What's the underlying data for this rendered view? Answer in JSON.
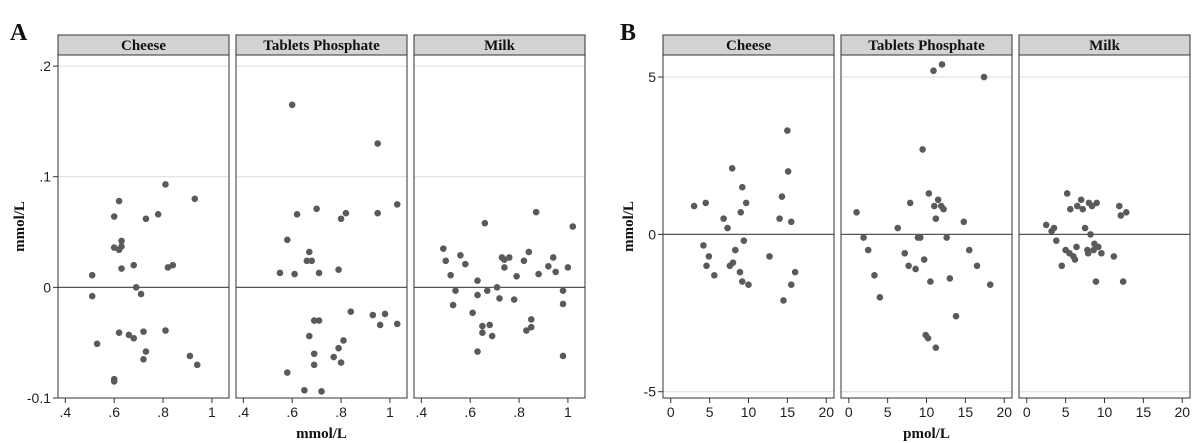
{
  "chart_data": [
    {
      "type": "scatter",
      "panel_label": "A",
      "xlabel": "mmol/L",
      "ylabel": "mmol/L",
      "xlim": [
        0.37,
        1.07
      ],
      "ylim": [
        -0.1,
        0.21
      ],
      "x_ticks": [
        {
          "v": 0.4,
          "label": ".4"
        },
        {
          "v": 0.6,
          "label": ".6"
        },
        {
          "v": 0.8,
          "label": ".8"
        },
        {
          "v": 1.0,
          "label": "1"
        }
      ],
      "y_ticks": [
        {
          "v": 0.2,
          "label": ".2"
        },
        {
          "v": 0.1,
          "label": ".1"
        },
        {
          "v": 0,
          "label": "0"
        },
        {
          "v": -0.1,
          "label": "-0.1"
        }
      ],
      "gridlines_y": [
        0.2,
        0.1,
        -0.1
      ],
      "reference_line_y": 0,
      "facets": [
        {
          "name": "Cheese",
          "points": [
            [
              0.51,
              0.011
            ],
            [
              0.51,
              -0.008
            ],
            [
              0.53,
              -0.051
            ],
            [
              0.6,
              0.064
            ],
            [
              0.6,
              0.036
            ],
            [
              0.6,
              -0.083
            ],
            [
              0.6,
              -0.085
            ],
            [
              0.62,
              0.078
            ],
            [
              0.62,
              0.034
            ],
            [
              0.62,
              -0.041
            ],
            [
              0.63,
              0.042
            ],
            [
              0.63,
              0.037
            ],
            [
              0.63,
              0.017
            ],
            [
              0.66,
              -0.043
            ],
            [
              0.68,
              0.02
            ],
            [
              0.68,
              -0.046
            ],
            [
              0.69,
              0.0
            ],
            [
              0.71,
              -0.006
            ],
            [
              0.72,
              -0.04
            ],
            [
              0.72,
              -0.065
            ],
            [
              0.73,
              0.062
            ],
            [
              0.73,
              -0.058
            ],
            [
              0.78,
              0.066
            ],
            [
              0.81,
              0.093
            ],
            [
              0.81,
              -0.039
            ],
            [
              0.82,
              0.018
            ],
            [
              0.84,
              0.02
            ],
            [
              0.91,
              -0.062
            ],
            [
              0.93,
              0.08
            ],
            [
              0.94,
              -0.07
            ]
          ]
        },
        {
          "name": "Tablets Phosphate",
          "points": [
            [
              0.55,
              0.013
            ],
            [
              0.58,
              0.043
            ],
            [
              0.58,
              -0.077
            ],
            [
              0.6,
              0.165
            ],
            [
              0.61,
              0.012
            ],
            [
              0.62,
              0.066
            ],
            [
              0.65,
              -0.093
            ],
            [
              0.66,
              0.024
            ],
            [
              0.67,
              0.032
            ],
            [
              0.67,
              -0.044
            ],
            [
              0.68,
              0.024
            ],
            [
              0.69,
              -0.03
            ],
            [
              0.69,
              -0.06
            ],
            [
              0.69,
              -0.07
            ],
            [
              0.7,
              0.071
            ],
            [
              0.71,
              0.013
            ],
            [
              0.71,
              -0.03
            ],
            [
              0.72,
              -0.094
            ],
            [
              0.77,
              -0.063
            ],
            [
              0.79,
              0.016
            ],
            [
              0.79,
              -0.055
            ],
            [
              0.8,
              0.062
            ],
            [
              0.8,
              -0.068
            ],
            [
              0.81,
              -0.048
            ],
            [
              0.82,
              0.067
            ],
            [
              0.84,
              -0.022
            ],
            [
              0.93,
              -0.025
            ],
            [
              0.95,
              0.13
            ],
            [
              0.95,
              0.067
            ],
            [
              0.96,
              -0.034
            ],
            [
              0.98,
              -0.024
            ],
            [
              1.03,
              0.075
            ],
            [
              1.03,
              -0.033
            ]
          ]
        },
        {
          "name": "Milk",
          "points": [
            [
              0.49,
              0.035
            ],
            [
              0.5,
              0.024
            ],
            [
              0.52,
              0.011
            ],
            [
              0.53,
              -0.016
            ],
            [
              0.54,
              -0.003
            ],
            [
              0.56,
              0.029
            ],
            [
              0.58,
              0.021
            ],
            [
              0.61,
              -0.023
            ],
            [
              0.63,
              -0.007
            ],
            [
              0.63,
              -0.058
            ],
            [
              0.63,
              0.006
            ],
            [
              0.65,
              -0.035
            ],
            [
              0.65,
              -0.041
            ],
            [
              0.66,
              0.058
            ],
            [
              0.67,
              -0.003
            ],
            [
              0.68,
              -0.034
            ],
            [
              0.69,
              -0.044
            ],
            [
              0.71,
              0.0
            ],
            [
              0.72,
              -0.01
            ],
            [
              0.73,
              0.027
            ],
            [
              0.74,
              0.025
            ],
            [
              0.74,
              0.018
            ],
            [
              0.76,
              0.027
            ],
            [
              0.78,
              -0.011
            ],
            [
              0.79,
              0.01
            ],
            [
              0.82,
              0.024
            ],
            [
              0.83,
              -0.039
            ],
            [
              0.84,
              0.032
            ],
            [
              0.85,
              -0.029
            ],
            [
              0.85,
              -0.036
            ],
            [
              0.87,
              0.068
            ],
            [
              0.88,
              0.012
            ],
            [
              0.92,
              0.019
            ],
            [
              0.94,
              0.027
            ],
            [
              0.95,
              0.014
            ],
            [
              0.98,
              -0.003
            ],
            [
              0.98,
              -0.015
            ],
            [
              0.98,
              -0.062
            ],
            [
              1.0,
              0.018
            ],
            [
              1.02,
              0.055
            ]
          ]
        }
      ]
    },
    {
      "type": "scatter",
      "panel_label": "B",
      "xlabel": "pmol/L",
      "ylabel": "mmol/L",
      "xlim": [
        -1,
        21
      ],
      "ylim": [
        -5.2,
        5.7
      ],
      "x_ticks": [
        {
          "v": 0,
          "label": "0"
        },
        {
          "v": 5,
          "label": "5"
        },
        {
          "v": 10,
          "label": "10"
        },
        {
          "v": 15,
          "label": "15"
        },
        {
          "v": 20,
          "label": "20"
        }
      ],
      "y_ticks": [
        {
          "v": 5,
          "label": "5"
        },
        {
          "v": 0,
          "label": "0"
        },
        {
          "v": -5,
          "label": "-5"
        }
      ],
      "gridlines_y": [
        5,
        -5
      ],
      "reference_line_y": 0,
      "facets": [
        {
          "name": "Cheese",
          "points": [
            [
              3,
              0.9
            ],
            [
              4.2,
              -0.35
            ],
            [
              4.5,
              1.0
            ],
            [
              4.6,
              -1.0
            ],
            [
              4.9,
              -0.7
            ],
            [
              5.6,
              -1.3
            ],
            [
              6.8,
              0.5
            ],
            [
              7.3,
              0.2
            ],
            [
              7.6,
              -1.0
            ],
            [
              7.9,
              2.1
            ],
            [
              8.0,
              -0.9
            ],
            [
              8.3,
              -0.5
            ],
            [
              8.9,
              -1.2
            ],
            [
              9.0,
              0.7
            ],
            [
              9.2,
              -1.5
            ],
            [
              9.2,
              1.5
            ],
            [
              9.4,
              -0.2
            ],
            [
              9.7,
              1.0
            ],
            [
              10.0,
              -1.6
            ],
            [
              12.7,
              -0.7
            ],
            [
              14.0,
              0.5
            ],
            [
              14.3,
              1.2
            ],
            [
              14.5,
              -2.1
            ],
            [
              15.0,
              3.3
            ],
            [
              15.1,
              2.0
            ],
            [
              15.5,
              0.4
            ],
            [
              15.5,
              -1.6
            ],
            [
              16.0,
              -1.2
            ]
          ]
        },
        {
          "name": "Tablets Phosphate",
          "points": [
            [
              1,
              0.7
            ],
            [
              1.9,
              -0.1
            ],
            [
              2.5,
              -0.5
            ],
            [
              3.3,
              -1.3
            ],
            [
              4.0,
              -2.0
            ],
            [
              6.3,
              0.2
            ],
            [
              7.2,
              -0.6
            ],
            [
              7.7,
              -1.0
            ],
            [
              7.9,
              1.0
            ],
            [
              8.6,
              -1.1
            ],
            [
              8.9,
              -0.1
            ],
            [
              9.2,
              -0.1
            ],
            [
              9.5,
              2.7
            ],
            [
              9.7,
              -0.8
            ],
            [
              9.9,
              -3.2
            ],
            [
              10.2,
              -3.3
            ],
            [
              10.3,
              1.3
            ],
            [
              10.5,
              -1.5
            ],
            [
              10.9,
              5.2
            ],
            [
              11.0,
              0.9
            ],
            [
              11.2,
              0.5
            ],
            [
              11.2,
              -3.6
            ],
            [
              11.5,
              1.1
            ],
            [
              11.9,
              0.9
            ],
            [
              12.0,
              5.4
            ],
            [
              12.2,
              0.8
            ],
            [
              12.6,
              -0.1
            ],
            [
              13.0,
              -1.4
            ],
            [
              13.8,
              -2.6
            ],
            [
              14.8,
              0.4
            ],
            [
              15.5,
              -0.5
            ],
            [
              16.5,
              -1.0
            ],
            [
              17.4,
              5.0
            ],
            [
              18.2,
              -1.6
            ]
          ]
        },
        {
          "name": "Milk",
          "points": [
            [
              2.5,
              0.3
            ],
            [
              3.2,
              0.1
            ],
            [
              3.5,
              0.2
            ],
            [
              3.8,
              -0.2
            ],
            [
              4.5,
              -1.0
            ],
            [
              5.0,
              -0.5
            ],
            [
              5.2,
              1.3
            ],
            [
              5.5,
              -0.6
            ],
            [
              5.6,
              0.8
            ],
            [
              6.0,
              -0.7
            ],
            [
              6.2,
              -0.8
            ],
            [
              6.4,
              -0.4
            ],
            [
              6.5,
              0.9
            ],
            [
              7.0,
              1.1
            ],
            [
              7.2,
              0.8
            ],
            [
              7.5,
              0.2
            ],
            [
              7.8,
              -0.5
            ],
            [
              7.9,
              -0.6
            ],
            [
              8.0,
              1.0
            ],
            [
              8.2,
              0.0
            ],
            [
              8.4,
              0.9
            ],
            [
              8.6,
              -0.5
            ],
            [
              8.7,
              -0.3
            ],
            [
              8.9,
              -1.5
            ],
            [
              9.0,
              1.0
            ],
            [
              9.2,
              -0.4
            ],
            [
              9.6,
              -0.6
            ],
            [
              11.2,
              -0.7
            ],
            [
              11.9,
              0.9
            ],
            [
              12.1,
              0.6
            ],
            [
              12.4,
              -1.5
            ],
            [
              12.8,
              0.7
            ]
          ]
        }
      ]
    }
  ]
}
